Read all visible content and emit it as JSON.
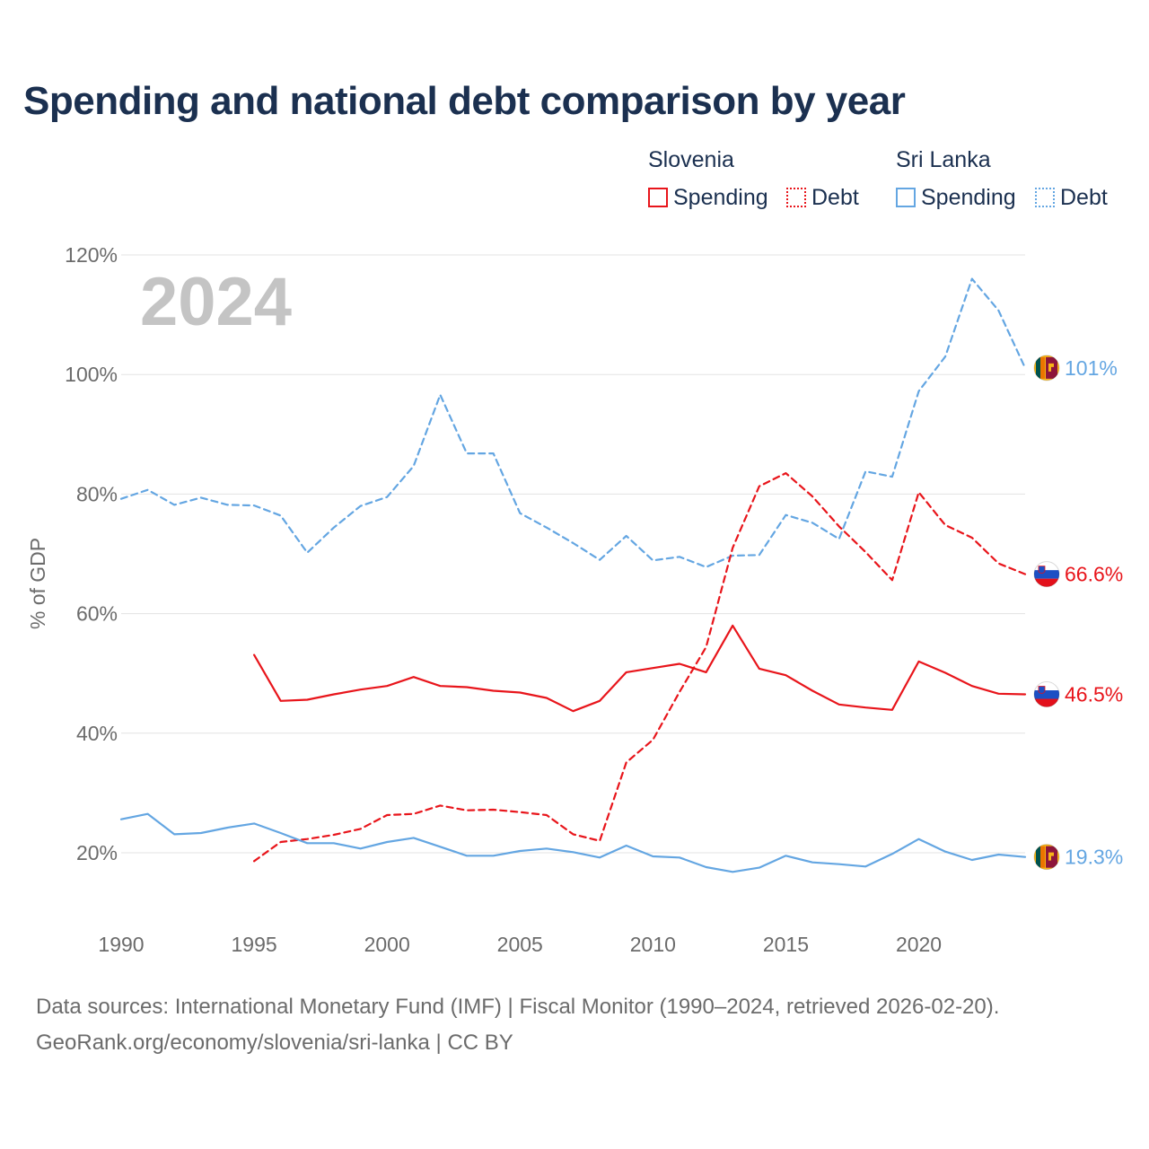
{
  "title": "Spending and national debt comparison by year",
  "legend": {
    "slovenia": {
      "name": "Slovenia",
      "spending": "Spending",
      "debt": "Debt",
      "color": "#e8151b"
    },
    "srilanka": {
      "name": "Sri Lanka",
      "spending": "Spending",
      "debt": "Debt",
      "color": "#64a6e2"
    }
  },
  "year_watermark": "2024",
  "footer": {
    "source": "Data sources: International Monetary Fund (IMF) | Fiscal Monitor (1990–2024, retrieved 2026-02-20).",
    "link": "GeoRank.org/economy/slovenia/sri-lanka | CC BY"
  },
  "chart_data": {
    "type": "line",
    "title": "Spending and national debt comparison by year",
    "xlabel": "",
    "ylabel": "% of GDP",
    "xlim": [
      1990,
      2024
    ],
    "ylim": [
      10,
      122
    ],
    "grid": true,
    "x_ticks": [
      1990,
      1995,
      2000,
      2005,
      2010,
      2015,
      2020
    ],
    "x_tick_labels": [
      "1990",
      "1995",
      "2000",
      "2005",
      "2010",
      "2015",
      "2020"
    ],
    "y_ticks": [
      20,
      40,
      60,
      80,
      100,
      120
    ],
    "y_tick_labels": [
      "20%",
      "40%",
      "60%",
      "80%",
      "100%",
      "120%"
    ],
    "series": [
      {
        "name": "Sri Lanka Debt",
        "country": "Sri Lanka",
        "measure": "Debt",
        "color": "#64a6e2",
        "style": "dashed",
        "end_label": "101%",
        "x": [
          1990,
          1991,
          1992,
          1993,
          1994,
          1995,
          1996,
          1997,
          1998,
          1999,
          2000,
          2001,
          2002,
          2003,
          2004,
          2005,
          2006,
          2007,
          2008,
          2009,
          2010,
          2011,
          2012,
          2013,
          2014,
          2015,
          2016,
          2017,
          2018,
          2019,
          2020,
          2021,
          2022,
          2023,
          2024
        ],
        "values": [
          79.2,
          80.7,
          78.2,
          79.4,
          78.2,
          78.1,
          76.4,
          70.2,
          74.4,
          78.0,
          79.5,
          84.7,
          96.6,
          86.8,
          86.8,
          76.8,
          74.4,
          71.8,
          69.0,
          73.0,
          68.9,
          69.5,
          67.8,
          69.7,
          69.8,
          76.5,
          75.2,
          72.5,
          83.8,
          82.9,
          97.2,
          103.0,
          116.0,
          110.7,
          101.1
        ]
      },
      {
        "name": "Slovenia Debt",
        "country": "Slovenia",
        "measure": "Debt",
        "color": "#e8151b",
        "style": "dashed",
        "end_label": "66.6%",
        "x": [
          1995,
          1996,
          1997,
          1998,
          1999,
          2000,
          2001,
          2002,
          2003,
          2004,
          2005,
          2006,
          2007,
          2008,
          2009,
          2010,
          2011,
          2012,
          2013,
          2014,
          2015,
          2016,
          2017,
          2018,
          2019,
          2020,
          2021,
          2022,
          2023,
          2024
        ],
        "values": [
          18.6,
          21.8,
          22.3,
          23.0,
          24.0,
          26.3,
          26.5,
          27.9,
          27.1,
          27.2,
          26.8,
          26.3,
          23.1,
          22.0,
          35.1,
          38.9,
          46.9,
          54.4,
          71.0,
          81.3,
          83.5,
          79.6,
          74.6,
          70.3,
          65.6,
          80.3,
          74.8,
          72.7,
          68.4,
          66.6
        ]
      },
      {
        "name": "Slovenia Spending",
        "country": "Slovenia",
        "measure": "Spending",
        "color": "#e8151b",
        "style": "solid",
        "end_label": "46.5%",
        "x": [
          1995,
          1996,
          1997,
          1998,
          1999,
          2000,
          2001,
          2002,
          2003,
          2004,
          2005,
          2006,
          2007,
          2008,
          2009,
          2010,
          2011,
          2012,
          2013,
          2014,
          2015,
          2016,
          2017,
          2018,
          2019,
          2020,
          2021,
          2022,
          2023,
          2024
        ],
        "values": [
          53.1,
          45.4,
          45.6,
          46.5,
          47.3,
          47.9,
          49.4,
          47.9,
          47.7,
          47.1,
          46.8,
          45.9,
          43.7,
          45.4,
          50.2,
          50.9,
          51.6,
          50.2,
          58.0,
          50.8,
          49.7,
          47.1,
          44.8,
          44.3,
          43.9,
          52.0,
          50.1,
          47.9,
          46.6,
          46.5
        ]
      },
      {
        "name": "Sri Lanka Spending",
        "country": "Sri Lanka",
        "measure": "Spending",
        "color": "#64a6e2",
        "style": "solid",
        "end_label": "19.3%",
        "x": [
          1990,
          1991,
          1992,
          1993,
          1994,
          1995,
          1996,
          1997,
          1998,
          1999,
          2000,
          2001,
          2002,
          2003,
          2004,
          2005,
          2006,
          2007,
          2008,
          2009,
          2010,
          2011,
          2012,
          2013,
          2014,
          2015,
          2016,
          2017,
          2018,
          2019,
          2020,
          2021,
          2022,
          2023,
          2024
        ],
        "values": [
          25.6,
          26.5,
          23.1,
          23.3,
          24.2,
          24.9,
          23.3,
          21.6,
          21.6,
          20.7,
          21.8,
          22.5,
          21.0,
          19.5,
          19.5,
          20.3,
          20.7,
          20.1,
          19.2,
          21.2,
          19.4,
          19.2,
          17.6,
          16.8,
          17.5,
          19.5,
          18.4,
          18.1,
          17.7,
          19.8,
          22.3,
          20.2,
          18.8,
          19.7,
          19.3
        ]
      }
    ]
  }
}
